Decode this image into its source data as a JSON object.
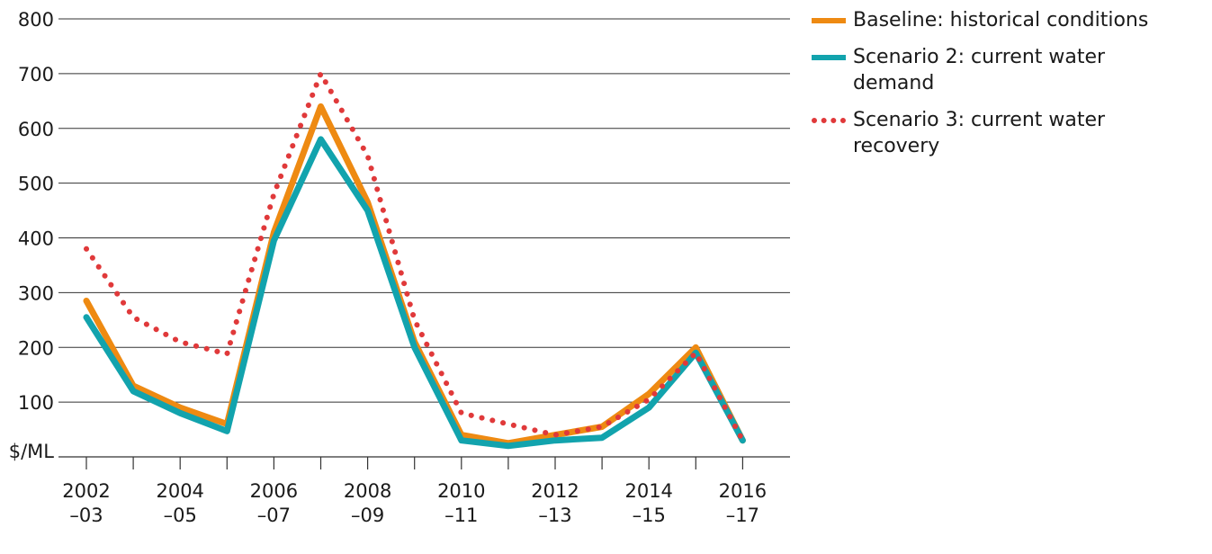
{
  "chart_data": {
    "type": "line",
    "x": [
      "2002–03",
      "2003–04",
      "2004–05",
      "2005–06",
      "2006–07",
      "2007–08",
      "2008–09",
      "2009–10",
      "2010–11",
      "2011–12",
      "2012–13",
      "2013–14",
      "2014–15",
      "2015–16",
      "2016–17"
    ],
    "x_tick_labels": [
      {
        "line1": "2002",
        "line2": "–03"
      },
      {
        "line1": "2004",
        "line2": "–05"
      },
      {
        "line1": "2006",
        "line2": "–07"
      },
      {
        "line1": "2008",
        "line2": "–09"
      },
      {
        "line1": "2010",
        "line2": "–11"
      },
      {
        "line1": "2012",
        "line2": "–13"
      },
      {
        "line1": "2014",
        "line2": "–15"
      },
      {
        "line1": "2016",
        "line2": "–17"
      }
    ],
    "y_ticks": [
      100,
      200,
      300,
      400,
      500,
      600,
      700,
      800
    ],
    "ylabel": "$/ML",
    "ylim": [
      0,
      800
    ],
    "grid": true,
    "legend_position": "top-right outside",
    "series": [
      {
        "name": "Baseline: historical conditions",
        "color": "#ee8a12",
        "style": "solid",
        "values": [
          285,
          130,
          90,
          60,
          410,
          640,
          465,
          210,
          40,
          25,
          40,
          55,
          115,
          200,
          30
        ]
      },
      {
        "name": "Scenario 2: current water demand",
        "color": "#12a3ad",
        "style": "solid",
        "values": [
          255,
          120,
          80,
          47,
          395,
          580,
          450,
          200,
          30,
          20,
          30,
          35,
          90,
          190,
          30
        ]
      },
      {
        "name": "Scenario 3: current water recovery",
        "color": "#e0393a",
        "style": "dotted",
        "values": [
          380,
          255,
          210,
          188,
          480,
          700,
          550,
          250,
          80,
          60,
          40,
          55,
          105,
          190,
          30
        ]
      }
    ]
  }
}
